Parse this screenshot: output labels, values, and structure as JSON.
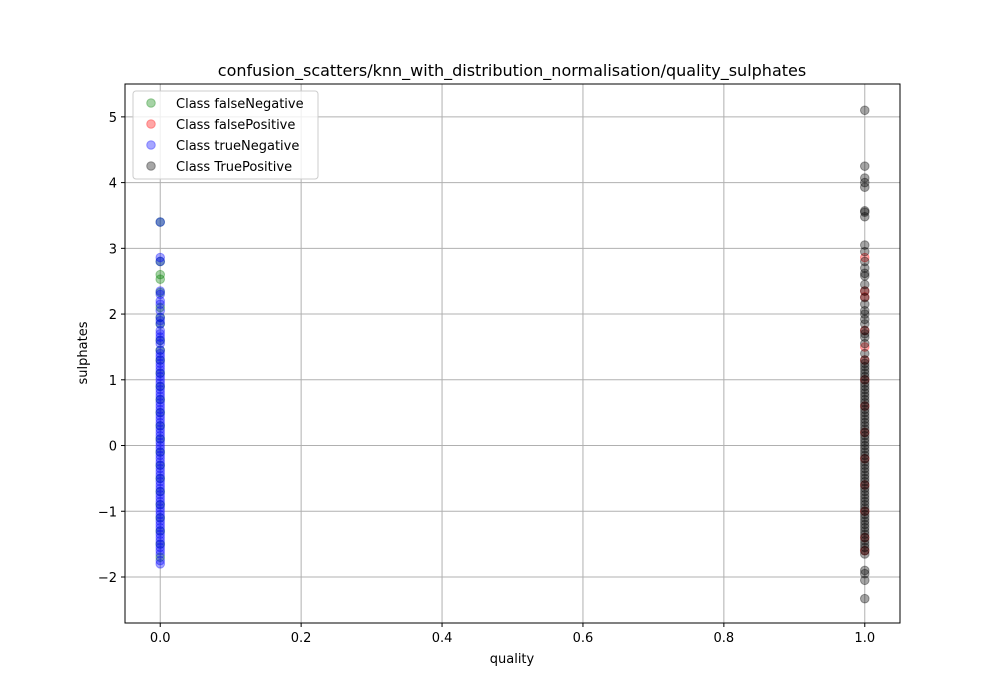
{
  "chart_data": {
    "type": "scatter",
    "title": "confusion_scatters/knn_with_distribution_normalisation/quality_sulphates",
    "xlabel": "quality",
    "ylabel": "sulphates",
    "xlim": [
      -0.05,
      1.05
    ],
    "ylim": [
      -2.7,
      5.5
    ],
    "grid": true,
    "legend_position": "top-left",
    "x_ticks": [
      0.0,
      0.2,
      0.4,
      0.6,
      0.8,
      1.0
    ],
    "x_tick_labels": [
      "0.0",
      "0.2",
      "0.4",
      "0.6",
      "0.8",
      "1.0"
    ],
    "y_ticks": [
      -2,
      -1,
      0,
      1,
      2,
      3,
      4,
      5
    ],
    "y_tick_labels": [
      "−2",
      "−1",
      "0",
      "1",
      "2",
      "3",
      "4",
      "5"
    ],
    "series": [
      {
        "name": "Class falseNegative",
        "color": "#008000",
        "points": [
          [
            0,
            3.4
          ],
          [
            0,
            2.8
          ],
          [
            0,
            2.6
          ],
          [
            0,
            2.53
          ],
          [
            0,
            2.33
          ],
          [
            0,
            2.1
          ],
          [
            0,
            1.95
          ],
          [
            0,
            1.85
          ],
          [
            0,
            1.6
          ],
          [
            0,
            1.45
          ],
          [
            0,
            1.3
          ],
          [
            0,
            1.1
          ],
          [
            0,
            0.9
          ],
          [
            0,
            0.7
          ],
          [
            0,
            0.5
          ],
          [
            0,
            0.3
          ],
          [
            0,
            0.1
          ],
          [
            0,
            -0.1
          ],
          [
            0,
            -0.3
          ],
          [
            0,
            -0.5
          ],
          [
            0,
            -0.7
          ],
          [
            0,
            -0.9
          ],
          [
            0,
            -1.1
          ],
          [
            0,
            -1.3
          ],
          [
            0,
            -1.5
          ],
          [
            0,
            -1.7
          ]
        ]
      },
      {
        "name": "Class falsePositive",
        "color": "#ff0000",
        "points": [
          [
            1,
            2.86
          ],
          [
            1,
            2.35
          ],
          [
            1,
            2.26
          ],
          [
            1,
            1.75
          ],
          [
            1,
            1.5
          ],
          [
            1,
            1.3
          ],
          [
            1,
            1.0
          ],
          [
            1,
            0.6
          ],
          [
            1,
            0.2
          ],
          [
            1,
            -0.2
          ],
          [
            1,
            -0.6
          ],
          [
            1,
            -1.0
          ],
          [
            1,
            -1.4
          ],
          [
            1,
            -1.6
          ]
        ]
      },
      {
        "name": "Class trueNegative",
        "color": "#0000ff",
        "points": [
          [
            0,
            3.4
          ],
          [
            0,
            2.86
          ],
          [
            0,
            2.8
          ],
          [
            0,
            2.35
          ],
          [
            0,
            2.3
          ],
          [
            0,
            2.2
          ],
          [
            0,
            2.15
          ],
          [
            0,
            2.05
          ],
          [
            0,
            1.95
          ],
          [
            0,
            1.9
          ],
          [
            0,
            1.85
          ],
          [
            0,
            1.75
          ],
          [
            0,
            1.7
          ],
          [
            0,
            1.65
          ],
          [
            0,
            1.6
          ],
          [
            0,
            1.55
          ],
          [
            0,
            1.45
          ],
          [
            0,
            1.4
          ],
          [
            0,
            1.35
          ],
          [
            0,
            1.3
          ],
          [
            0,
            1.25
          ],
          [
            0,
            1.2
          ],
          [
            0,
            1.15
          ],
          [
            0,
            1.1
          ],
          [
            0,
            1.05
          ],
          [
            0,
            1.0
          ],
          [
            0,
            0.95
          ],
          [
            0,
            0.9
          ],
          [
            0,
            0.85
          ],
          [
            0,
            0.8
          ],
          [
            0,
            0.75
          ],
          [
            0,
            0.7
          ],
          [
            0,
            0.65
          ],
          [
            0,
            0.6
          ],
          [
            0,
            0.55
          ],
          [
            0,
            0.5
          ],
          [
            0,
            0.45
          ],
          [
            0,
            0.4
          ],
          [
            0,
            0.35
          ],
          [
            0,
            0.3
          ],
          [
            0,
            0.25
          ],
          [
            0,
            0.2
          ],
          [
            0,
            0.15
          ],
          [
            0,
            0.1
          ],
          [
            0,
            0.05
          ],
          [
            0,
            0.0
          ],
          [
            0,
            -0.05
          ],
          [
            0,
            -0.1
          ],
          [
            0,
            -0.15
          ],
          [
            0,
            -0.2
          ],
          [
            0,
            -0.25
          ],
          [
            0,
            -0.3
          ],
          [
            0,
            -0.35
          ],
          [
            0,
            -0.4
          ],
          [
            0,
            -0.45
          ],
          [
            0,
            -0.5
          ],
          [
            0,
            -0.55
          ],
          [
            0,
            -0.6
          ],
          [
            0,
            -0.65
          ],
          [
            0,
            -0.7
          ],
          [
            0,
            -0.75
          ],
          [
            0,
            -0.8
          ],
          [
            0,
            -0.85
          ],
          [
            0,
            -0.9
          ],
          [
            0,
            -0.95
          ],
          [
            0,
            -1.0
          ],
          [
            0,
            -1.05
          ],
          [
            0,
            -1.1
          ],
          [
            0,
            -1.15
          ],
          [
            0,
            -1.2
          ],
          [
            0,
            -1.25
          ],
          [
            0,
            -1.3
          ],
          [
            0,
            -1.35
          ],
          [
            0,
            -1.4
          ],
          [
            0,
            -1.45
          ],
          [
            0,
            -1.5
          ],
          [
            0,
            -1.55
          ],
          [
            0,
            -1.6
          ],
          [
            0,
            -1.65
          ],
          [
            0,
            -1.75
          ],
          [
            0,
            -1.8
          ]
        ]
      },
      {
        "name": "Class TruePositive",
        "color": "#000000",
        "points": [
          [
            1,
            5.1
          ],
          [
            1,
            4.25
          ],
          [
            1,
            4.07
          ],
          [
            1,
            4.0
          ],
          [
            1,
            3.93
          ],
          [
            1,
            3.57
          ],
          [
            1,
            3.55
          ],
          [
            1,
            3.48
          ],
          [
            1,
            3.05
          ],
          [
            1,
            2.95
          ],
          [
            1,
            2.8
          ],
          [
            1,
            2.7
          ],
          [
            1,
            2.62
          ],
          [
            1,
            2.58
          ],
          [
            1,
            2.45
          ],
          [
            1,
            2.35
          ],
          [
            1,
            2.25
          ],
          [
            1,
            2.15
          ],
          [
            1,
            2.05
          ],
          [
            1,
            2.0
          ],
          [
            1,
            1.92
          ],
          [
            1,
            1.85
          ],
          [
            1,
            1.75
          ],
          [
            1,
            1.7
          ],
          [
            1,
            1.65
          ],
          [
            1,
            1.55
          ],
          [
            1,
            1.4
          ],
          [
            1,
            1.3
          ],
          [
            1,
            1.25
          ],
          [
            1,
            1.2
          ],
          [
            1,
            1.15
          ],
          [
            1,
            1.1
          ],
          [
            1,
            1.05
          ],
          [
            1,
            1.0
          ],
          [
            1,
            0.95
          ],
          [
            1,
            0.9
          ],
          [
            1,
            0.85
          ],
          [
            1,
            0.8
          ],
          [
            1,
            0.75
          ],
          [
            1,
            0.7
          ],
          [
            1,
            0.65
          ],
          [
            1,
            0.6
          ],
          [
            1,
            0.55
          ],
          [
            1,
            0.5
          ],
          [
            1,
            0.45
          ],
          [
            1,
            0.4
          ],
          [
            1,
            0.35
          ],
          [
            1,
            0.3
          ],
          [
            1,
            0.25
          ],
          [
            1,
            0.2
          ],
          [
            1,
            0.15
          ],
          [
            1,
            0.1
          ],
          [
            1,
            0.05
          ],
          [
            1,
            0.0
          ],
          [
            1,
            -0.05
          ],
          [
            1,
            -0.1
          ],
          [
            1,
            -0.15
          ],
          [
            1,
            -0.2
          ],
          [
            1,
            -0.25
          ],
          [
            1,
            -0.3
          ],
          [
            1,
            -0.35
          ],
          [
            1,
            -0.4
          ],
          [
            1,
            -0.45
          ],
          [
            1,
            -0.5
          ],
          [
            1,
            -0.55
          ],
          [
            1,
            -0.6
          ],
          [
            1,
            -0.65
          ],
          [
            1,
            -0.7
          ],
          [
            1,
            -0.75
          ],
          [
            1,
            -0.8
          ],
          [
            1,
            -0.85
          ],
          [
            1,
            -0.9
          ],
          [
            1,
            -0.95
          ],
          [
            1,
            -1.0
          ],
          [
            1,
            -1.05
          ],
          [
            1,
            -1.1
          ],
          [
            1,
            -1.15
          ],
          [
            1,
            -1.2
          ],
          [
            1,
            -1.25
          ],
          [
            1,
            -1.3
          ],
          [
            1,
            -1.35
          ],
          [
            1,
            -1.4
          ],
          [
            1,
            -1.45
          ],
          [
            1,
            -1.5
          ],
          [
            1,
            -1.55
          ],
          [
            1,
            -1.6
          ],
          [
            1,
            -1.65
          ],
          [
            1,
            -1.9
          ],
          [
            1,
            -1.95
          ],
          [
            1,
            -2.05
          ],
          [
            1,
            -2.33
          ]
        ]
      }
    ]
  }
}
